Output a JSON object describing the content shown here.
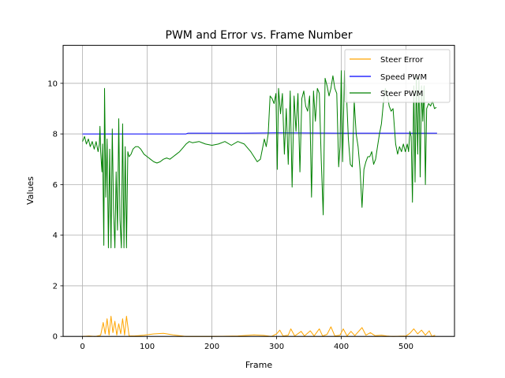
{
  "chart_data": {
    "type": "line",
    "title": "PWM and Error vs. Frame Number",
    "xlabel": "Frame",
    "ylabel": "Values",
    "xlim": [
      -30,
      575
    ],
    "ylim": [
      0,
      11.5
    ],
    "xticks": [
      0,
      100,
      200,
      300,
      400,
      500
    ],
    "yticks": [
      0,
      2,
      4,
      6,
      8,
      10
    ],
    "grid": true,
    "legend_position": "top-right",
    "series": [
      {
        "name": "Steer Error",
        "color": "#ffa500",
        "points": [
          [
            0,
            0.0
          ],
          [
            10,
            0.02
          ],
          [
            20,
            0.0
          ],
          [
            28,
            0.05
          ],
          [
            32,
            0.55
          ],
          [
            35,
            0.1
          ],
          [
            38,
            0.7
          ],
          [
            41,
            0.05
          ],
          [
            44,
            0.8
          ],
          [
            47,
            0.15
          ],
          [
            50,
            0.6
          ],
          [
            53,
            0.05
          ],
          [
            56,
            0.5
          ],
          [
            59,
            0.1
          ],
          [
            62,
            0.7
          ],
          [
            65,
            0.05
          ],
          [
            68,
            0.8
          ],
          [
            72,
            0.02
          ],
          [
            80,
            0.02
          ],
          [
            95,
            0.05
          ],
          [
            110,
            0.1
          ],
          [
            125,
            0.12
          ],
          [
            140,
            0.06
          ],
          [
            160,
            0.0
          ],
          [
            200,
            0.0
          ],
          [
            240,
            0.02
          ],
          [
            265,
            0.06
          ],
          [
            280,
            0.04
          ],
          [
            292,
            0.0
          ],
          [
            300,
            0.1
          ],
          [
            305,
            0.25
          ],
          [
            310,
            0.02
          ],
          [
            318,
            0.05
          ],
          [
            322,
            0.3
          ],
          [
            328,
            0.02
          ],
          [
            338,
            0.2
          ],
          [
            343,
            0.02
          ],
          [
            352,
            0.22
          ],
          [
            358,
            0.02
          ],
          [
            366,
            0.3
          ],
          [
            371,
            0.02
          ],
          [
            378,
            0.08
          ],
          [
            384,
            0.38
          ],
          [
            390,
            0.02
          ],
          [
            398,
            0.05
          ],
          [
            403,
            0.3
          ],
          [
            409,
            0.02
          ],
          [
            415,
            0.2
          ],
          [
            421,
            0.03
          ],
          [
            432,
            0.35
          ],
          [
            438,
            0.05
          ],
          [
            445,
            0.15
          ],
          [
            452,
            0.03
          ],
          [
            462,
            0.05
          ],
          [
            470,
            0.02
          ],
          [
            480,
            0.0
          ],
          [
            500,
            0.02
          ],
          [
            506,
            0.12
          ],
          [
            512,
            0.3
          ],
          [
            518,
            0.1
          ],
          [
            524,
            0.25
          ],
          [
            530,
            0.05
          ],
          [
            536,
            0.22
          ],
          [
            540,
            0.0
          ],
          [
            545,
            0.05
          ]
        ]
      },
      {
        "name": "Speed PWM",
        "color": "#0000ff",
        "points": [
          [
            0,
            8.0
          ],
          [
            50,
            8.0
          ],
          [
            100,
            8.0
          ],
          [
            160,
            8.0
          ],
          [
            163,
            8.03
          ],
          [
            250,
            8.03
          ],
          [
            300,
            8.04
          ],
          [
            400,
            8.03
          ],
          [
            500,
            8.03
          ],
          [
            548,
            8.03
          ]
        ]
      },
      {
        "name": "Steer PWM",
        "color": "#008000",
        "points": [
          [
            0,
            7.7
          ],
          [
            3,
            7.9
          ],
          [
            6,
            7.6
          ],
          [
            9,
            7.8
          ],
          [
            12,
            7.5
          ],
          [
            15,
            7.7
          ],
          [
            18,
            7.4
          ],
          [
            21,
            7.7
          ],
          [
            24,
            7.3
          ],
          [
            26,
            7.6
          ],
          [
            27,
            8.3
          ],
          [
            28,
            7.3
          ],
          [
            30,
            6.5
          ],
          [
            31,
            7.6
          ],
          [
            33,
            3.6
          ],
          [
            34,
            9.8
          ],
          [
            36,
            5.5
          ],
          [
            38,
            7.8
          ],
          [
            40,
            3.5
          ],
          [
            42,
            7.4
          ],
          [
            44,
            3.5
          ],
          [
            46,
            8.2
          ],
          [
            48,
            5.0
          ],
          [
            50,
            3.5
          ],
          [
            52,
            6.5
          ],
          [
            54,
            4.2
          ],
          [
            56,
            8.6
          ],
          [
            58,
            4.6
          ],
          [
            60,
            3.5
          ],
          [
            62,
            8.4
          ],
          [
            64,
            3.5
          ],
          [
            66,
            7.5
          ],
          [
            68,
            3.5
          ],
          [
            70,
            7.3
          ],
          [
            72,
            7.1
          ],
          [
            75,
            7.2
          ],
          [
            78,
            7.4
          ],
          [
            82,
            7.5
          ],
          [
            86,
            7.5
          ],
          [
            90,
            7.4
          ],
          [
            95,
            7.2
          ],
          [
            100,
            7.1
          ],
          [
            105,
            7.0
          ],
          [
            110,
            6.9
          ],
          [
            115,
            6.85
          ],
          [
            120,
            6.9
          ],
          [
            125,
            7.0
          ],
          [
            130,
            7.05
          ],
          [
            135,
            7.0
          ],
          [
            140,
            7.1
          ],
          [
            145,
            7.2
          ],
          [
            150,
            7.3
          ],
          [
            155,
            7.45
          ],
          [
            160,
            7.6
          ],
          [
            165,
            7.7
          ],
          [
            170,
            7.65
          ],
          [
            180,
            7.7
          ],
          [
            190,
            7.6
          ],
          [
            200,
            7.55
          ],
          [
            210,
            7.6
          ],
          [
            220,
            7.7
          ],
          [
            230,
            7.55
          ],
          [
            240,
            7.7
          ],
          [
            250,
            7.6
          ],
          [
            255,
            7.45
          ],
          [
            260,
            7.3
          ],
          [
            265,
            7.1
          ],
          [
            270,
            6.9
          ],
          [
            275,
            7.0
          ],
          [
            278,
            7.4
          ],
          [
            281,
            7.8
          ],
          [
            284,
            7.5
          ],
          [
            287,
            8.0
          ],
          [
            290,
            9.5
          ],
          [
            293,
            9.4
          ],
          [
            296,
            9.2
          ],
          [
            299,
            9.6
          ],
          [
            301,
            6.6
          ],
          [
            303,
            9.8
          ],
          [
            306,
            8.8
          ],
          [
            309,
            9.6
          ],
          [
            312,
            7.2
          ],
          [
            315,
            9.0
          ],
          [
            318,
            6.8
          ],
          [
            321,
            9.7
          ],
          [
            324,
            5.9
          ],
          [
            327,
            9.5
          ],
          [
            330,
            8.1
          ],
          [
            333,
            9.6
          ],
          [
            336,
            6.5
          ],
          [
            339,
            9.4
          ],
          [
            342,
            9.7
          ],
          [
            345,
            9.1
          ],
          [
            348,
            8.9
          ],
          [
            351,
            9.5
          ],
          [
            354,
            5.5
          ],
          [
            357,
            9.7
          ],
          [
            360,
            8.5
          ],
          [
            363,
            9.8
          ],
          [
            366,
            9.6
          ],
          [
            369,
            7.0
          ],
          [
            372,
            4.8
          ],
          [
            375,
            10.2
          ],
          [
            378,
            9.9
          ],
          [
            381,
            9.5
          ],
          [
            384,
            9.8
          ],
          [
            387,
            10.3
          ],
          [
            390,
            9.8
          ],
          [
            393,
            9.6
          ],
          [
            396,
            6.7
          ],
          [
            398,
            7.5
          ],
          [
            400,
            10.5
          ],
          [
            402,
            6.9
          ],
          [
            405,
            10.5
          ],
          [
            408,
            9.6
          ],
          [
            411,
            7.8
          ],
          [
            414,
            6.8
          ],
          [
            417,
            6.7
          ],
          [
            420,
            9.3
          ],
          [
            423,
            8.0
          ],
          [
            426,
            7.5
          ],
          [
            429,
            6.6
          ],
          [
            432,
            5.1
          ],
          [
            435,
            6.6
          ],
          [
            438,
            6.9
          ],
          [
            441,
            7.1
          ],
          [
            444,
            7.1
          ],
          [
            447,
            7.3
          ],
          [
            450,
            6.8
          ],
          [
            453,
            7.0
          ],
          [
            456,
            7.5
          ],
          [
            459,
            8.0
          ],
          [
            462,
            8.4
          ],
          [
            465,
            9.2
          ],
          [
            468,
            9.8
          ],
          [
            471,
            9.6
          ],
          [
            474,
            9.1
          ],
          [
            477,
            8.9
          ],
          [
            480,
            9.0
          ],
          [
            484,
            7.6
          ],
          [
            487,
            7.2
          ],
          [
            490,
            7.5
          ],
          [
            493,
            7.3
          ],
          [
            496,
            7.6
          ],
          [
            499,
            7.3
          ],
          [
            502,
            7.6
          ],
          [
            504,
            7.3
          ],
          [
            506,
            8.1
          ],
          [
            508,
            7.9
          ],
          [
            510,
            5.3
          ],
          [
            512,
            9.9
          ],
          [
            514,
            6.1
          ],
          [
            516,
            10.3
          ],
          [
            518,
            7.2
          ],
          [
            520,
            10.2
          ],
          [
            522,
            6.3
          ],
          [
            524,
            9.9
          ],
          [
            526,
            8.5
          ],
          [
            528,
            9.9
          ],
          [
            530,
            6.0
          ],
          [
            532,
            9.0
          ],
          [
            535,
            9.2
          ],
          [
            538,
            9.1
          ],
          [
            541,
            9.3
          ],
          [
            544,
            9.0
          ],
          [
            547,
            9.05
          ]
        ]
      }
    ]
  }
}
